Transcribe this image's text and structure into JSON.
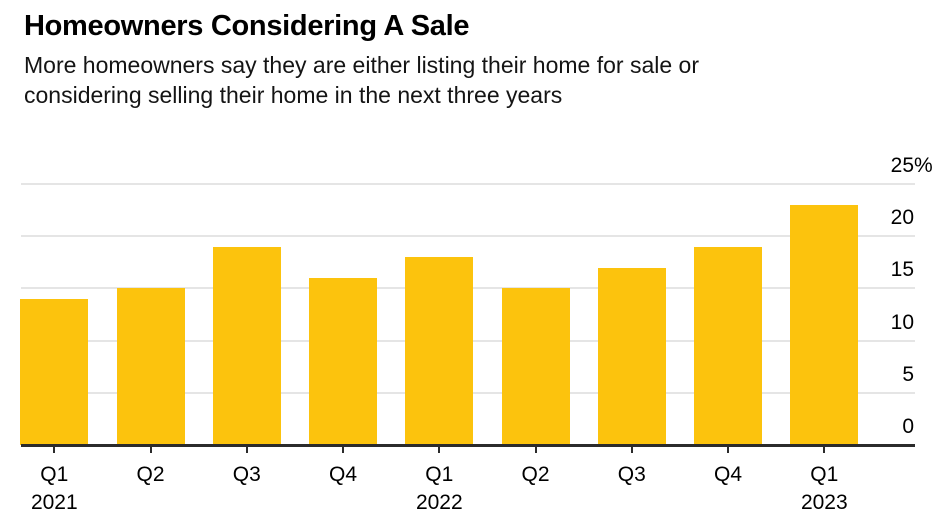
{
  "header": {
    "title": "Homeowners Considering A Sale",
    "subtitle_line1": "More homeowners say they are either listing their home for sale or",
    "subtitle_line2": "considering selling their home in the next three years"
  },
  "chart_data": {
    "type": "bar",
    "title": "Homeowners Considering A Sale",
    "subtitle": "More homeowners say they are either listing their home for sale or considering selling their home in the next three years",
    "categories": [
      "Q1 2021",
      "Q2 2021",
      "Q3 2021",
      "Q4 2021",
      "Q1 2022",
      "Q2 2022",
      "Q3 2022",
      "Q4 2022",
      "Q1 2023"
    ],
    "values": [
      14,
      15,
      19,
      16,
      18,
      15,
      17,
      19,
      23
    ],
    "unit": "%",
    "xlabel": "",
    "ylabel": "",
    "ylim": [
      0,
      25
    ],
    "y_ticks": [
      0,
      5,
      10,
      15,
      20,
      25
    ],
    "y_tick_labels": [
      "0",
      "5",
      "10",
      "15",
      "20",
      "25%"
    ],
    "x_ticks": [
      {
        "label": "Q1",
        "year": "2021"
      },
      {
        "label": "Q2"
      },
      {
        "label": "Q3"
      },
      {
        "label": "Q4"
      },
      {
        "label": "Q1",
        "year": "2022"
      },
      {
        "label": "Q2"
      },
      {
        "label": "Q3"
      },
      {
        "label": "Q4"
      },
      {
        "label": "Q1",
        "year": "2023"
      }
    ],
    "grid": true,
    "legend": "none",
    "yaxis_side": "right"
  },
  "colors": {
    "bar": "#fcc30d",
    "gridline": "#e5e5e5",
    "axis": "#2b2b2b",
    "text": "#000000"
  }
}
